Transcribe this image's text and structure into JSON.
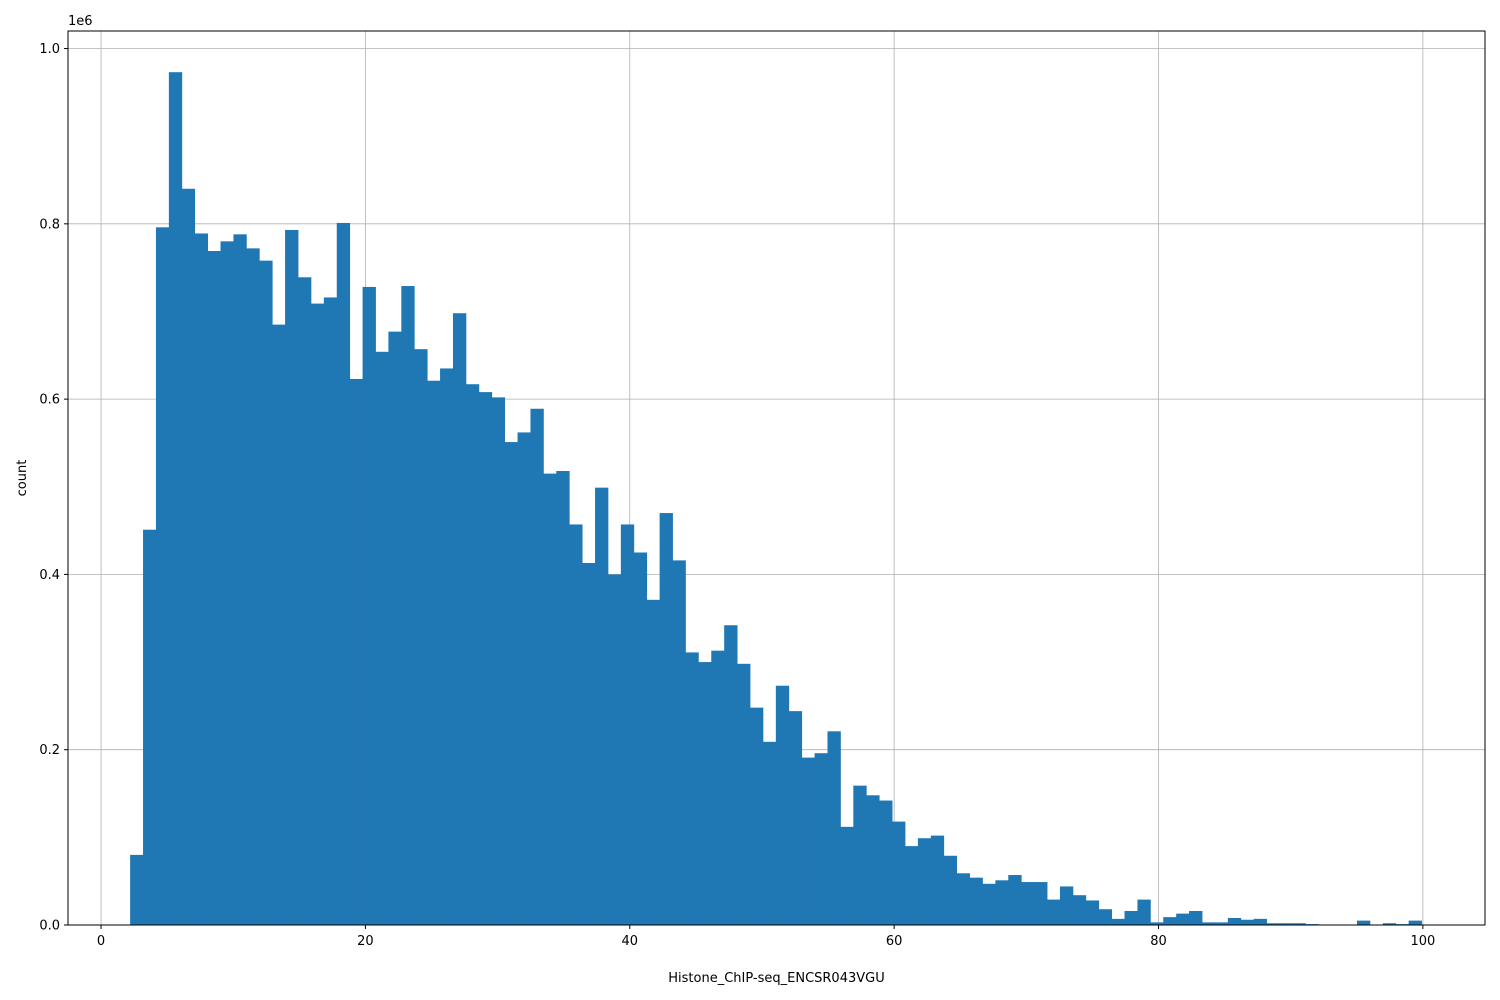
{
  "chart_data": {
    "type": "bar",
    "title": "",
    "xlabel": "Histone_ChIP-seq_ENCSR043VGU",
    "ylabel": "count",
    "y_scale_note": "1e6",
    "xlim": [
      -2.5,
      104.7
    ],
    "ylim": [
      0,
      1.02
    ],
    "x_ticks": [
      0,
      20,
      40,
      60,
      80,
      100
    ],
    "y_ticks": [
      0.0,
      0.2,
      0.4,
      0.6,
      0.8,
      1.0
    ],
    "grid": true,
    "bar_color": "#1f77b4",
    "bin_start": 2.2,
    "bin_width": 0.977,
    "values": [
      0.08,
      0.451,
      0.796,
      0.973,
      0.84,
      0.789,
      0.769,
      0.78,
      0.788,
      0.772,
      0.758,
      0.685,
      0.793,
      0.739,
      0.709,
      0.716,
      0.801,
      0.623,
      0.728,
      0.654,
      0.677,
      0.729,
      0.657,
      0.621,
      0.635,
      0.698,
      0.617,
      0.608,
      0.602,
      0.551,
      0.562,
      0.589,
      0.515,
      0.518,
      0.457,
      0.413,
      0.499,
      0.4,
      0.457,
      0.425,
      0.371,
      0.47,
      0.416,
      0.311,
      0.3,
      0.313,
      0.342,
      0.298,
      0.248,
      0.209,
      0.273,
      0.244,
      0.191,
      0.196,
      0.221,
      0.112,
      0.159,
      0.148,
      0.142,
      0.118,
      0.09,
      0.099,
      0.102,
      0.079,
      0.059,
      0.054,
      0.047,
      0.051,
      0.057,
      0.049,
      0.049,
      0.029,
      0.044,
      0.034,
      0.028,
      0.018,
      0.007,
      0.016,
      0.029,
      0.003,
      0.009,
      0.013,
      0.016,
      0.003,
      0.003,
      0.008,
      0.006,
      0.007,
      0.002,
      0.002,
      0.002,
      0.001,
      0.0,
      0.0,
      0.0,
      0.005,
      0.0,
      0.002,
      0.001,
      0.005
    ]
  }
}
